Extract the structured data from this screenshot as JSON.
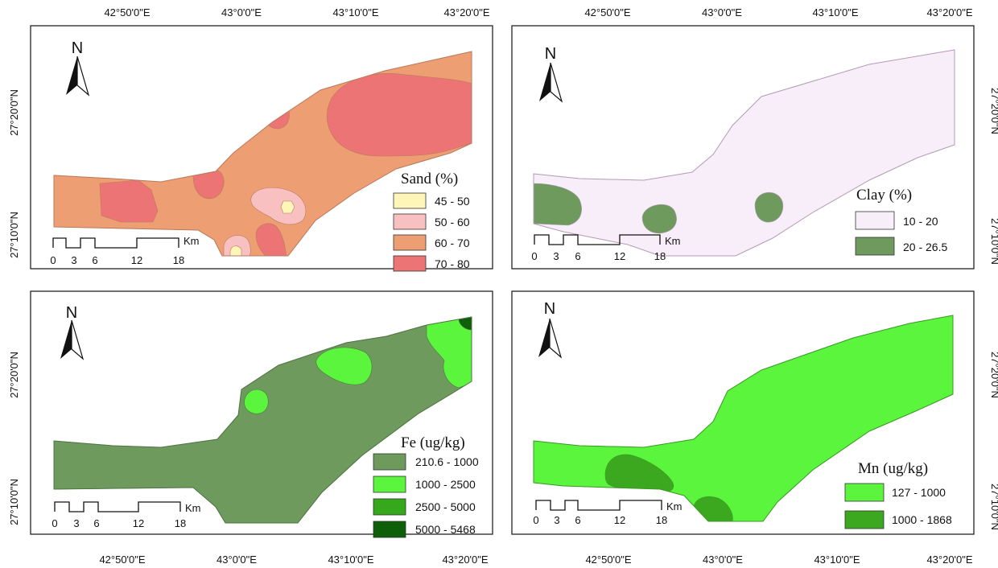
{
  "panels": [
    {
      "id": "sand",
      "legend_title": "Sand (%)",
      "base_color": "#ee9e73",
      "outline": "#b97a5c",
      "legend": [
        {
          "label": "45 - 50",
          "color": "#fdf6b8"
        },
        {
          "label": "50 - 60",
          "color": "#f8c0c0"
        },
        {
          "label": "60 - 70",
          "color": "#ee9e73"
        },
        {
          "label": "70 - 80",
          "color": "#ec7474"
        }
      ],
      "north_label": "N",
      "scale_unit": "Km",
      "scale_ticks": [
        "0",
        "3",
        "6",
        "12",
        "18"
      ]
    },
    {
      "id": "clay",
      "legend_title": "Clay (%)",
      "base_color": "#f8eefa",
      "outline": "#b79bb8",
      "legend": [
        {
          "label": "10 - 20",
          "color": "#f8eefa"
        },
        {
          "label": "20 - 26.5",
          "color": "#6e9a5e"
        }
      ],
      "north_label": "N",
      "scale_unit": "Km",
      "scale_ticks": [
        "0",
        "3",
        "6",
        "12",
        "18"
      ]
    },
    {
      "id": "fe",
      "legend_title": "Fe (ug/kg)",
      "base_color": "#6e9a5e",
      "outline": "#4f7343",
      "legend": [
        {
          "label": "210.6 - 1000",
          "color": "#6e9a5e"
        },
        {
          "label": "1000 - 2500",
          "color": "#5af53c"
        },
        {
          "label": "2500 - 5000",
          "color": "#36a81c"
        },
        {
          "label": "5000 - 5468",
          "color": "#0f5e08"
        }
      ],
      "north_label": "N",
      "scale_unit": "Km",
      "scale_ticks": [
        "0",
        "3",
        "6",
        "12",
        "18"
      ]
    },
    {
      "id": "mn",
      "legend_title": "Mn (ug/kg)",
      "base_color": "#5af53c",
      "outline": "#3a9a26",
      "legend": [
        {
          "label": "127 - 1000",
          "color": "#5af53c"
        },
        {
          "label": "1000 - 1868",
          "color": "#3ca81f"
        }
      ],
      "north_label": "N",
      "scale_unit": "Km",
      "scale_ticks": [
        "0",
        "3",
        "6",
        "12",
        "18"
      ]
    }
  ],
  "longitude_ticks_left": [
    "42°50'0\"E",
    "43°0'0\"E",
    "43°10'0\"E",
    "43°20'0\"E"
  ],
  "longitude_ticks_right": [
    "42°50'0\"E",
    "43°0'0\"E",
    "43°10'0\"E",
    "43°20'0\"E"
  ],
  "latitude_ticks": [
    "27°20'0\"N",
    "27°10'0\"N"
  ]
}
